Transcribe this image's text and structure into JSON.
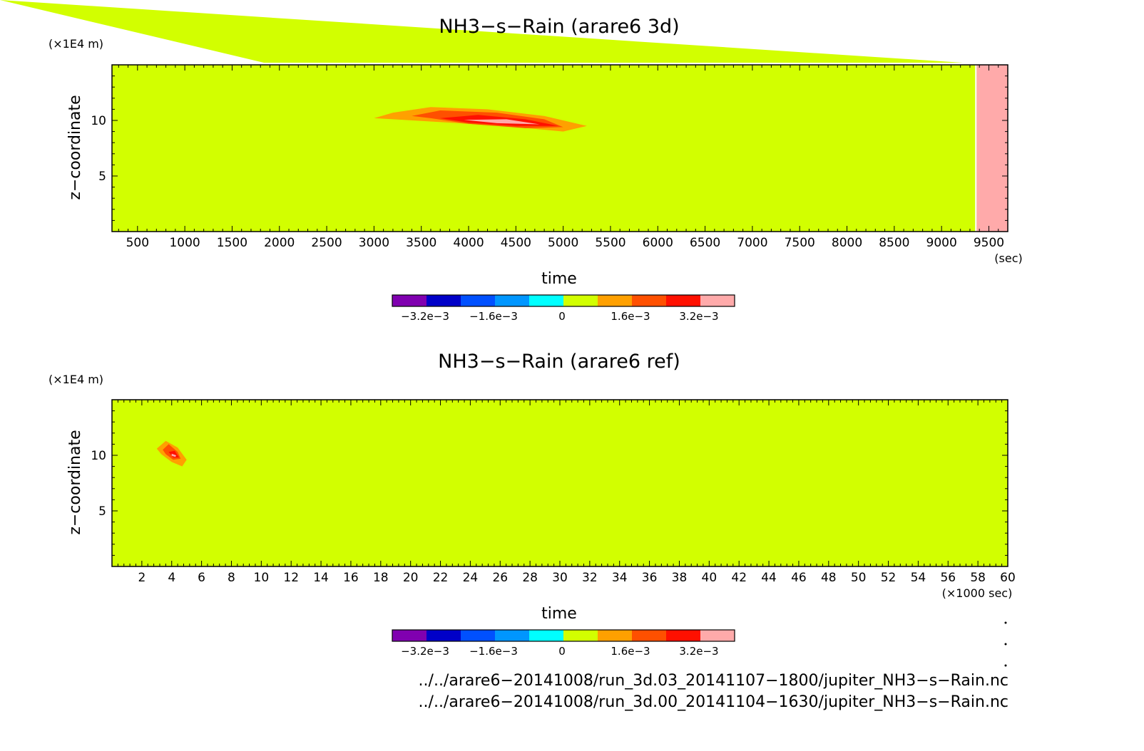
{
  "chart_data": [
    {
      "type": "heatmap",
      "title": "NH3−s−Rain (arare6 3d)",
      "xlabel": "time",
      "ylabel": "z−coordinate",
      "y_unit": "(×1E4 m)",
      "x_unit": "(sec)",
      "xlim": [
        230,
        9700
      ],
      "ylim": [
        0,
        15
      ],
      "x_ticks": [
        "500",
        "1000",
        "1500",
        "2000",
        "2500",
        "3000",
        "3500",
        "4000",
        "4500",
        "5000",
        "5500",
        "6000",
        "6500",
        "7000",
        "7500",
        "8000",
        "8500",
        "9000",
        "9500"
      ],
      "x_tick_values": [
        500,
        1000,
        1500,
        2000,
        2500,
        3000,
        3500,
        4000,
        4500,
        5000,
        5500,
        6000,
        6500,
        7000,
        7500,
        8000,
        8500,
        9000,
        9500
      ],
      "y_ticks": [
        "5",
        "10"
      ],
      "y_tick_values": [
        5,
        10
      ],
      "background_level": "0",
      "undefined_region": {
        "x_start": 9370,
        "x_end": 9700,
        "color": "#ffaaaa"
      },
      "features": [
        {
          "level": 1,
          "color": "#ffa000",
          "points": [
            [
              3000,
              10.2
            ],
            [
              3200,
              10.7
            ],
            [
              3600,
              11.2
            ],
            [
              4200,
              11.0
            ],
            [
              4800,
              10.4
            ],
            [
              5250,
              9.5
            ],
            [
              5000,
              9.0
            ],
            [
              4500,
              9.4
            ],
            [
              3800,
              9.8
            ],
            [
              3200,
              10.1
            ]
          ]
        },
        {
          "level": 2,
          "color": "#ff5000",
          "points": [
            [
              3400,
              10.4
            ],
            [
              3700,
              10.9
            ],
            [
              4300,
              10.7
            ],
            [
              4800,
              10.1
            ],
            [
              5000,
              9.4
            ],
            [
              4600,
              9.3
            ],
            [
              4000,
              9.7
            ],
            [
              3600,
              10.2
            ]
          ]
        },
        {
          "level": 3,
          "color": "#ff1000",
          "points": [
            [
              3700,
              10.2
            ],
            [
              4100,
              10.5
            ],
            [
              4600,
              10.1
            ],
            [
              4950,
              9.5
            ],
            [
              4500,
              9.5
            ],
            [
              4000,
              9.8
            ]
          ]
        },
        {
          "level": 4,
          "color": "#ffaaaa",
          "points": [
            [
              3950,
              10.05
            ],
            [
              4400,
              10.1
            ],
            [
              4750,
              9.65
            ],
            [
              4300,
              9.75
            ]
          ]
        }
      ]
    },
    {
      "type": "heatmap",
      "title": "NH3−s−Rain (arare6 ref)",
      "xlabel": "time",
      "ylabel": "z−coordinate",
      "y_unit": "(×1E4 m)",
      "x_unit": "(×1000 sec)",
      "xlim": [
        0,
        60
      ],
      "ylim": [
        0,
        15
      ],
      "x_ticks": [
        "2",
        "4",
        "6",
        "8",
        "10",
        "12",
        "14",
        "16",
        "18",
        "20",
        "22",
        "24",
        "26",
        "28",
        "30",
        "32",
        "34",
        "36",
        "38",
        "40",
        "42",
        "44",
        "46",
        "48",
        "50",
        "52",
        "54",
        "56",
        "58",
        "60"
      ],
      "x_tick_values": [
        2,
        4,
        6,
        8,
        10,
        12,
        14,
        16,
        18,
        20,
        22,
        24,
        26,
        28,
        30,
        32,
        34,
        36,
        38,
        40,
        42,
        44,
        46,
        48,
        50,
        52,
        54,
        56,
        58,
        60
      ],
      "y_ticks": [
        "5",
        "10"
      ],
      "y_tick_values": [
        5,
        10
      ],
      "background_level": "0",
      "features": [
        {
          "level": 1,
          "color": "#ffa000",
          "points": [
            [
              3.0,
              10.6
            ],
            [
              3.6,
              11.3
            ],
            [
              4.4,
              10.7
            ],
            [
              5.0,
              9.6
            ],
            [
              4.7,
              9.0
            ],
            [
              4.0,
              9.4
            ],
            [
              3.3,
              10.1
            ]
          ]
        },
        {
          "level": 2,
          "color": "#ff5000",
          "points": [
            [
              3.4,
              10.5
            ],
            [
              3.8,
              11.0
            ],
            [
              4.4,
              10.3
            ],
            [
              4.6,
              9.7
            ],
            [
              4.1,
              9.6
            ],
            [
              3.6,
              10.1
            ]
          ]
        },
        {
          "level": 3,
          "color": "#ff1000",
          "points": [
            [
              3.8,
              10.3
            ],
            [
              4.2,
              10.4
            ],
            [
              4.5,
              9.8
            ],
            [
              4.1,
              9.8
            ]
          ]
        },
        {
          "level": 4,
          "color": "#ffaaaa",
          "points": [
            [
              4.0,
              10.15
            ],
            [
              4.3,
              10.0
            ],
            [
              4.25,
              9.85
            ],
            [
              4.0,
              9.95
            ]
          ]
        }
      ]
    }
  ],
  "colorbar": {
    "colors": [
      "#8000b0",
      "#0000c8",
      "#0050ff",
      "#0096ff",
      "#00ffff",
      "#d2ff00",
      "#ffa000",
      "#ff5000",
      "#ff1000",
      "#ffaaaa"
    ],
    "tick_labels": [
      "−3.2e−3",
      "−1.6e−3",
      "0",
      "1.6e−3",
      "3.2e−3"
    ]
  },
  "file_paths": [
    "../../arare6−20141008/run_3d.03_20141107−1800/jupiter_NH3−s−Rain.nc",
    "../../arare6−20141008/run_3d.00_20141104−1630/jupiter_NH3−s−Rain.nc"
  ]
}
